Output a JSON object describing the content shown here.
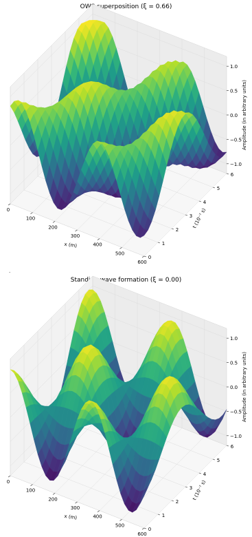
{
  "figure": {
    "stray_mark": "."
  },
  "chart_data": [
    {
      "type": "surface3d",
      "title": "OWS superposition (ξ = 0.66)",
      "xi": 0.66,
      "xlabel": "x (m)",
      "ylabel": "t (10⁻⁷ s)",
      "zlabel": "Amplitude (in arbitrary units)",
      "xlim": [
        0,
        600
      ],
      "ylim": [
        0,
        6
      ],
      "zlim": [
        -1.2,
        1.2
      ],
      "xticks": [
        "0",
        "100",
        "200",
        "300",
        "400",
        "500",
        "600"
      ],
      "yticks": [
        "0",
        "1",
        "2",
        "3",
        "4",
        "5",
        "6"
      ],
      "zticks": [
        "−1.0",
        "−0.5",
        "0.0",
        "0.5",
        "1.0"
      ],
      "colormap": "viridis",
      "grid": true
    },
    {
      "type": "surface3d",
      "title": "Standing wave formation (ξ = 0.00)",
      "xi": 0.0,
      "xlabel": "x (m)",
      "ylabel": "t (10⁻⁷ s)",
      "zlabel": "Amplitude (in arbitrary units)",
      "xlim": [
        0,
        600
      ],
      "ylim": [
        0,
        6
      ],
      "zlim": [
        -1.2,
        1.2
      ],
      "xticks": [
        "0",
        "100",
        "200",
        "300",
        "400",
        "500",
        "600"
      ],
      "yticks": [
        "0",
        "1",
        "2",
        "3",
        "4",
        "5",
        "6"
      ],
      "zticks": [
        "−1.0",
        "−0.5",
        "0.0",
        "0.5",
        "1.0"
      ],
      "colormap": "viridis",
      "grid": true
    }
  ]
}
